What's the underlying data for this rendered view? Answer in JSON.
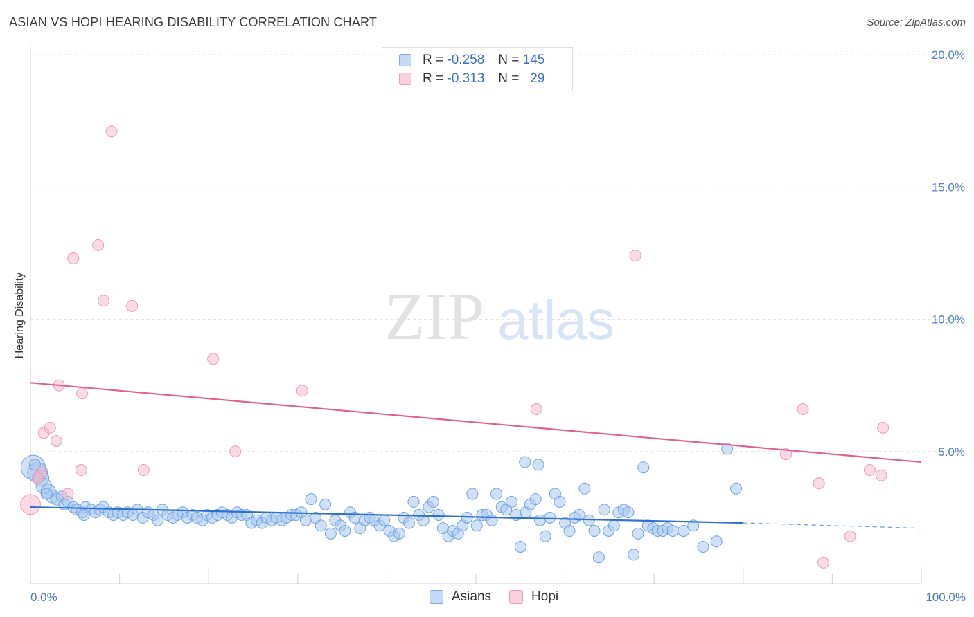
{
  "header": {
    "title": "ASIAN VS HOPI HEARING DISABILITY CORRELATION CHART",
    "source": "Source: ZipAtlas.com"
  },
  "legend": {
    "rows": [
      {
        "r_label": "R = ",
        "r_value": "-0.258",
        "n_label": "N = ",
        "n_value": "145",
        "color": "#a9c8f0"
      },
      {
        "r_label": "R = ",
        "r_value": "-0.313",
        "n_label": "N = ",
        "n_value": "29",
        "color": "#f6b8cb"
      }
    ]
  },
  "bottom_legend": {
    "items": [
      {
        "label": "Asians",
        "color": "#a9c8f0"
      },
      {
        "label": "Hopi",
        "color": "#f6b8cb"
      }
    ]
  },
  "watermark": {
    "zip": "ZIP",
    "atlas": "atlas"
  },
  "chart_data": {
    "type": "scatter",
    "title": "ASIAN VS HOPI HEARING DISABILITY CORRELATION CHART",
    "xlabel": "",
    "ylabel": "Hearing Disability",
    "xlim": [
      0,
      100
    ],
    "ylim": [
      0,
      20
    ],
    "x_tick_labels": [
      "0.0%",
      "100.0%"
    ],
    "y_ticks": [
      5,
      10,
      15,
      20
    ],
    "y_tick_labels": [
      "5.0%",
      "10.0%",
      "15.0%",
      "20.0%"
    ],
    "grid": true,
    "legend_position": "top-center",
    "series": [
      {
        "name": "Asians",
        "color": "#6fa3e6",
        "trend": {
          "x": [
            0,
            80
          ],
          "y": [
            2.9,
            2.3
          ],
          "dashed_to": [
            100,
            2.1
          ]
        },
        "points": [
          [
            0.3,
            4.4
          ],
          [
            0.8,
            4.2
          ],
          [
            1.2,
            4.0
          ],
          [
            1.5,
            3.7
          ],
          [
            2.0,
            3.5
          ],
          [
            2.5,
            3.3
          ],
          [
            3.0,
            3.2
          ],
          [
            3.5,
            3.3
          ],
          [
            3.8,
            3.0
          ],
          [
            4.2,
            3.1
          ],
          [
            4.8,
            2.9
          ],
          [
            5.2,
            2.8
          ],
          [
            5.8,
            2.7
          ],
          [
            6.2,
            2.9
          ],
          [
            6.8,
            2.8
          ],
          [
            7.3,
            2.7
          ],
          [
            7.8,
            2.8
          ],
          [
            8.2,
            2.9
          ],
          [
            8.8,
            2.7
          ],
          [
            9.3,
            2.6
          ],
          [
            9.8,
            2.7
          ],
          [
            10.4,
            2.6
          ],
          [
            10.9,
            2.7
          ],
          [
            11.5,
            2.6
          ],
          [
            12.0,
            2.8
          ],
          [
            12.6,
            2.5
          ],
          [
            13.2,
            2.7
          ],
          [
            13.8,
            2.6
          ],
          [
            14.3,
            2.4
          ],
          [
            14.8,
            2.8
          ],
          [
            15.4,
            2.6
          ],
          [
            16.0,
            2.5
          ],
          [
            16.5,
            2.6
          ],
          [
            17.1,
            2.7
          ],
          [
            17.6,
            2.5
          ],
          [
            18.2,
            2.6
          ],
          [
            18.7,
            2.5
          ],
          [
            19.3,
            2.4
          ],
          [
            19.8,
            2.6
          ],
          [
            20.4,
            2.5
          ],
          [
            21.0,
            2.6
          ],
          [
            21.5,
            2.7
          ],
          [
            22.1,
            2.6
          ],
          [
            22.6,
            2.5
          ],
          [
            23.2,
            2.7
          ],
          [
            23.7,
            2.6
          ],
          [
            24.3,
            2.6
          ],
          [
            24.8,
            2.3
          ],
          [
            25.4,
            2.4
          ],
          [
            26.0,
            2.3
          ],
          [
            26.5,
            2.5
          ],
          [
            27.1,
            2.4
          ],
          [
            27.6,
            2.5
          ],
          [
            28.2,
            2.4
          ],
          [
            28.7,
            2.5
          ],
          [
            29.3,
            2.6
          ],
          [
            29.8,
            2.6
          ],
          [
            30.4,
            2.7
          ],
          [
            30.9,
            2.4
          ],
          [
            31.5,
            3.2
          ],
          [
            32.0,
            2.5
          ],
          [
            32.6,
            2.2
          ],
          [
            33.1,
            3.0
          ],
          [
            33.7,
            1.9
          ],
          [
            34.2,
            2.4
          ],
          [
            34.8,
            2.2
          ],
          [
            35.3,
            2.0
          ],
          [
            35.9,
            2.7
          ],
          [
            36.4,
            2.5
          ],
          [
            37.0,
            2.1
          ],
          [
            37.5,
            2.4
          ],
          [
            38.1,
            2.5
          ],
          [
            38.6,
            2.4
          ],
          [
            39.2,
            2.2
          ],
          [
            39.7,
            2.4
          ],
          [
            40.3,
            2.0
          ],
          [
            40.8,
            1.8
          ],
          [
            41.4,
            1.9
          ],
          [
            41.9,
            2.5
          ],
          [
            42.5,
            2.3
          ],
          [
            43.0,
            3.1
          ],
          [
            43.6,
            2.6
          ],
          [
            44.1,
            2.4
          ],
          [
            44.7,
            2.9
          ],
          [
            45.2,
            3.1
          ],
          [
            45.8,
            2.6
          ],
          [
            46.3,
            2.1
          ],
          [
            46.9,
            1.8
          ],
          [
            47.4,
            2.0
          ],
          [
            48.0,
            1.9
          ],
          [
            48.5,
            2.2
          ],
          [
            49.0,
            2.5
          ],
          [
            49.6,
            3.4
          ],
          [
            50.1,
            2.2
          ],
          [
            50.7,
            2.6
          ],
          [
            51.2,
            2.6
          ],
          [
            51.8,
            2.4
          ],
          [
            52.3,
            3.4
          ],
          [
            52.9,
            2.9
          ],
          [
            53.4,
            2.8
          ],
          [
            54.0,
            3.1
          ],
          [
            54.5,
            2.6
          ],
          [
            55.0,
            1.4
          ],
          [
            55.6,
            2.7
          ],
          [
            56.1,
            3.0
          ],
          [
            56.7,
            3.2
          ],
          [
            57.2,
            2.4
          ],
          [
            57.8,
            1.8
          ],
          [
            58.3,
            2.5
          ],
          [
            58.9,
            3.4
          ],
          [
            59.4,
            3.1
          ],
          [
            60.0,
            2.3
          ],
          [
            60.5,
            2.0
          ],
          [
            61.1,
            2.5
          ],
          [
            61.6,
            2.6
          ],
          [
            62.2,
            3.6
          ],
          [
            62.7,
            2.4
          ],
          [
            63.3,
            2.0
          ],
          [
            63.8,
            1.0
          ],
          [
            64.4,
            2.8
          ],
          [
            64.9,
            2.0
          ],
          [
            65.5,
            2.2
          ],
          [
            66.0,
            2.7
          ],
          [
            66.6,
            2.8
          ],
          [
            67.1,
            2.7
          ],
          [
            67.7,
            1.1
          ],
          [
            68.2,
            1.9
          ],
          [
            68.8,
            4.4
          ],
          [
            69.3,
            2.2
          ],
          [
            69.9,
            2.1
          ],
          [
            70.4,
            2.0
          ],
          [
            71.0,
            2.0
          ],
          [
            71.5,
            2.1
          ],
          [
            72.1,
            2.0
          ],
          [
            73.3,
            2.0
          ],
          [
            74.4,
            2.2
          ],
          [
            75.5,
            1.4
          ],
          [
            77.0,
            1.6
          ],
          [
            78.2,
            5.1
          ],
          [
            79.2,
            3.6
          ],
          [
            57.0,
            4.5
          ],
          [
            55.5,
            4.6
          ],
          [
            0.5,
            4.5
          ],
          [
            1.8,
            3.4
          ],
          [
            6.0,
            2.6
          ]
        ],
        "sizes": [
          22,
          18,
          14,
          14,
          13,
          12,
          11,
          10,
          10,
          10,
          10,
          10,
          10,
          10,
          10,
          10,
          10,
          10,
          10,
          10,
          10,
          10,
          10,
          10,
          10,
          10,
          10,
          10,
          10,
          10,
          10,
          10,
          10,
          10,
          10,
          10,
          10,
          10,
          10,
          10,
          10,
          10,
          10,
          10,
          10,
          10,
          10,
          10,
          10,
          10,
          10,
          10,
          10,
          10,
          10,
          10,
          10,
          10,
          10,
          10,
          10,
          10,
          10,
          10,
          10,
          10,
          10,
          10,
          10,
          10,
          10,
          10,
          10,
          10,
          10,
          10,
          10,
          10,
          10,
          10,
          10,
          10,
          10,
          10,
          10,
          10,
          10,
          10,
          10,
          10,
          10,
          10,
          10,
          10,
          10,
          10,
          10,
          10,
          10,
          10,
          10,
          10,
          10,
          10,
          10,
          10,
          10,
          10,
          10,
          10,
          10,
          10,
          10,
          10,
          10,
          10,
          10,
          10,
          10,
          10,
          10,
          10,
          10,
          10,
          10,
          10,
          10,
          10,
          10,
          10,
          10,
          10,
          10,
          10,
          10,
          10,
          10,
          10,
          10,
          10,
          10,
          10,
          10,
          10,
          10,
          10,
          10,
          10,
          10,
          10,
          10,
          10,
          10,
          10,
          10,
          10,
          10,
          10,
          10,
          10,
          10,
          10,
          16,
          14,
          10
        ]
      },
      {
        "name": "Hopi",
        "color": "#f29bb6",
        "trend": {
          "x": [
            0,
            100
          ],
          "y": [
            7.6,
            4.6
          ]
        },
        "points": [
          [
            0.0,
            3.0
          ],
          [
            1.2,
            4.2
          ],
          [
            1.5,
            5.7
          ],
          [
            2.2,
            5.9
          ],
          [
            2.9,
            5.4
          ],
          [
            3.2,
            7.5
          ],
          [
            4.2,
            3.4
          ],
          [
            5.7,
            4.3
          ],
          [
            5.8,
            7.2
          ],
          [
            4.8,
            12.3
          ],
          [
            7.6,
            12.8
          ],
          [
            8.2,
            10.7
          ],
          [
            9.1,
            17.1
          ],
          [
            11.4,
            10.5
          ],
          [
            12.7,
            4.3
          ],
          [
            20.5,
            8.5
          ],
          [
            23.0,
            5.0
          ],
          [
            30.5,
            7.3
          ],
          [
            56.8,
            6.6
          ],
          [
            67.9,
            12.4
          ],
          [
            84.8,
            4.9
          ],
          [
            86.7,
            6.6
          ],
          [
            88.5,
            3.8
          ],
          [
            89.0,
            0.8
          ],
          [
            92.0,
            1.8
          ],
          [
            94.2,
            4.3
          ],
          [
            95.5,
            4.1
          ],
          [
            95.7,
            5.9
          ],
          [
            0.8,
            4.0
          ]
        ],
        "sizes": [
          18,
          10,
          10,
          10,
          10,
          10,
          10,
          10,
          10,
          10,
          10,
          10,
          10,
          10,
          10,
          10,
          10,
          10,
          10,
          10,
          10,
          10,
          10,
          10,
          10,
          10,
          10,
          10,
          10
        ]
      }
    ]
  }
}
